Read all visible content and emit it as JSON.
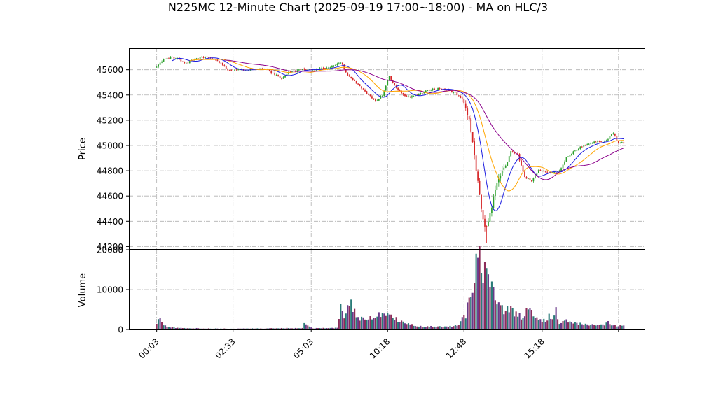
{
  "chart_data": {
    "type": "candlestick",
    "title": "N225MC 12-Minute Chart (2025-09-19 17:00~18:00) - MA on HLC/3",
    "price_panel": {
      "ylabel": "Price",
      "ylim": [
        44180,
        45770
      ],
      "yticks": [
        44200,
        44400,
        44600,
        44800,
        45000,
        45200,
        45400,
        45600
      ],
      "grid": true
    },
    "volume_panel": {
      "ylabel": "Volume",
      "ylim": [
        0,
        20000
      ],
      "yticks": [
        0,
        10000,
        20000
      ],
      "grid": true
    },
    "x_axis": {
      "index_range": [
        -16,
        281
      ],
      "ticks": [
        {
          "index": 0,
          "label": "00:03"
        },
        {
          "index": 44,
          "label": "02:33"
        },
        {
          "index": 89,
          "label": "05:03"
        },
        {
          "index": 133,
          "label": "10:18"
        },
        {
          "index": 177,
          "label": "12:48"
        },
        {
          "index": 222,
          "label": "15:18"
        },
        {
          "index": 266,
          "label": ""
        }
      ]
    },
    "price_anchors": [
      [
        0,
        45620
      ],
      [
        4,
        45680
      ],
      [
        8,
        45700
      ],
      [
        12,
        45690
      ],
      [
        16,
        45650
      ],
      [
        20,
        45670
      ],
      [
        26,
        45700
      ],
      [
        32,
        45690
      ],
      [
        36,
        45660
      ],
      [
        42,
        45590
      ],
      [
        48,
        45600
      ],
      [
        56,
        45600
      ],
      [
        62,
        45610
      ],
      [
        68,
        45560
      ],
      [
        72,
        45530
      ],
      [
        76,
        45580
      ],
      [
        84,
        45600
      ],
      [
        90,
        45600
      ],
      [
        98,
        45610
      ],
      [
        106,
        45660
      ],
      [
        110,
        45560
      ],
      [
        116,
        45480
      ],
      [
        122,
        45400
      ],
      [
        126,
        45350
      ],
      [
        130,
        45400
      ],
      [
        134,
        45550
      ],
      [
        138,
        45450
      ],
      [
        144,
        45380
      ],
      [
        150,
        45400
      ],
      [
        156,
        45440
      ],
      [
        164,
        45450
      ],
      [
        172,
        45420
      ],
      [
        176,
        45360
      ],
      [
        178,
        45300
      ],
      [
        180,
        45200
      ],
      [
        182,
        45050
      ],
      [
        184,
        44800
      ],
      [
        186,
        44600
      ],
      [
        188,
        44400
      ],
      [
        190,
        44350
      ],
      [
        192,
        44450
      ],
      [
        194,
        44600
      ],
      [
        196,
        44700
      ],
      [
        200,
        44800
      ],
      [
        204,
        44950
      ],
      [
        208,
        44930
      ],
      [
        212,
        44750
      ],
      [
        216,
        44720
      ],
      [
        220,
        44800
      ],
      [
        224,
        44790
      ],
      [
        228,
        44780
      ],
      [
        232,
        44800
      ],
      [
        236,
        44900
      ],
      [
        240,
        44950
      ],
      [
        244,
        44990
      ],
      [
        248,
        45010
      ],
      [
        252,
        45030
      ],
      [
        256,
        45030
      ],
      [
        260,
        45050
      ],
      [
        263,
        45100
      ],
      [
        266,
        45020
      ],
      [
        269,
        45020
      ]
    ],
    "volume_anchors": [
      [
        0,
        1500
      ],
      [
        2,
        2800
      ],
      [
        4,
        1000
      ],
      [
        6,
        700
      ],
      [
        12,
        400
      ],
      [
        20,
        300
      ],
      [
        40,
        200
      ],
      [
        60,
        250
      ],
      [
        84,
        350
      ],
      [
        85,
        1300
      ],
      [
        90,
        300
      ],
      [
        104,
        400
      ],
      [
        106,
        5800
      ],
      [
        108,
        2500
      ],
      [
        110,
        7500
      ],
      [
        112,
        6000
      ],
      [
        114,
        4500
      ],
      [
        116,
        3000
      ],
      [
        120,
        2300
      ],
      [
        125,
        3300
      ],
      [
        130,
        3800
      ],
      [
        135,
        3400
      ],
      [
        140,
        2000
      ],
      [
        150,
        800
      ],
      [
        160,
        700
      ],
      [
        170,
        800
      ],
      [
        174,
        1200
      ],
      [
        176,
        3200
      ],
      [
        178,
        2500
      ],
      [
        180,
        9200
      ],
      [
        182,
        9000
      ],
      [
        184,
        17800
      ],
      [
        185,
        16000
      ],
      [
        186,
        18500
      ],
      [
        188,
        14000
      ],
      [
        190,
        18600
      ],
      [
        192,
        11500
      ],
      [
        194,
        9800
      ],
      [
        196,
        6500
      ],
      [
        198,
        8000
      ],
      [
        200,
        4500
      ],
      [
        204,
        5000
      ],
      [
        210,
        3000
      ],
      [
        212,
        4200
      ],
      [
        216,
        5000
      ],
      [
        220,
        2500
      ],
      [
        224,
        2000
      ],
      [
        226,
        3500
      ],
      [
        228,
        2500
      ],
      [
        230,
        4600
      ],
      [
        232,
        1500
      ],
      [
        234,
        2500
      ],
      [
        240,
        1500
      ],
      [
        250,
        1200
      ],
      [
        258,
        1000
      ],
      [
        260,
        1800
      ],
      [
        262,
        1000
      ],
      [
        269,
        800
      ]
    ],
    "bar_count": 270,
    "series": [
      {
        "period": 10,
        "color": "#1c1ce0",
        "width": 1.0
      },
      {
        "period": 20,
        "color": "#ffa500",
        "width": 1.0
      },
      {
        "period": 40,
        "color": "#8b008b",
        "width": 1.0
      }
    ],
    "colors": {
      "up": "#2ca02c",
      "down": "#d62728",
      "volume": [
        "#8c2d5a",
        "#2a7b78",
        "#6a3a8a"
      ],
      "grid": "#b0b0b0"
    }
  }
}
